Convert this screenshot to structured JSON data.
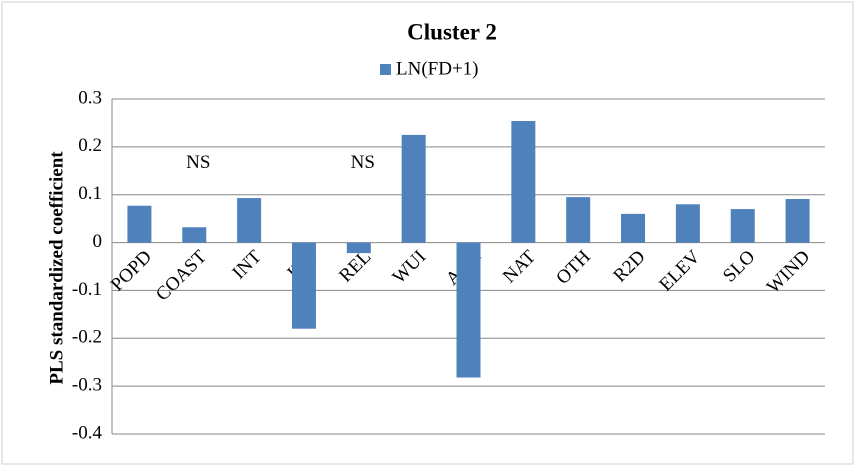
{
  "chart_data": {
    "type": "bar",
    "title": "Cluster 2",
    "y_label": "PLS standardized coefficient",
    "categories": [
      "POPD",
      "COAST",
      "INT",
      "INL",
      "REL",
      "WUI",
      "AGR",
      "NAT",
      "OTH",
      "R2D",
      "ELEV",
      "SLO",
      "WIND"
    ],
    "series": [
      {
        "name": "LN(FD+1)",
        "color": "#4f81bd",
        "values": [
          0.077,
          0.032,
          0.093,
          -0.18,
          -0.022,
          0.225,
          -0.282,
          0.254,
          0.095,
          0.06,
          0.08,
          0.07,
          0.091
        ]
      }
    ],
    "annotations": [
      {
        "text": "NS",
        "x": "COAST"
      },
      {
        "text": "NS",
        "x": "REL"
      }
    ],
    "ylim": [
      -0.4,
      0.3
    ],
    "yticks": [
      -0.4,
      -0.3,
      -0.2,
      -0.1,
      0,
      0.1,
      0.2,
      0.3
    ],
    "grid": true,
    "legend": "top"
  }
}
